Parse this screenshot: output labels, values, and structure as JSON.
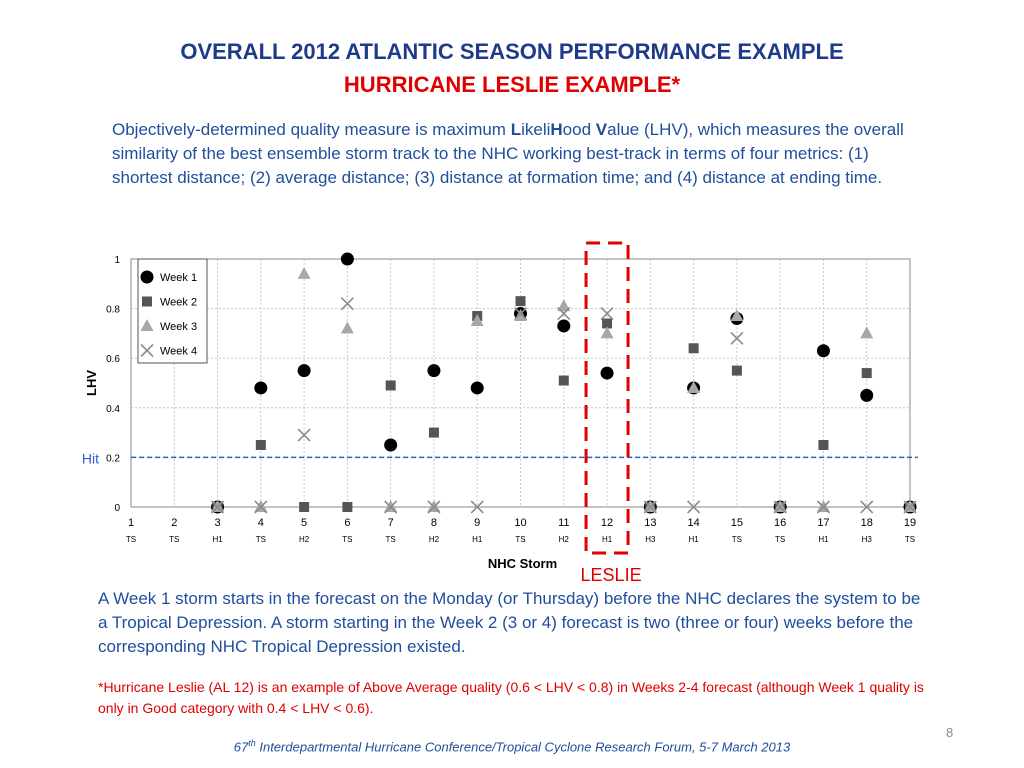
{
  "title": {
    "line1": "OVERALL  2012 ATLANTIC SEASON PERFORMANCE EXAMPLE",
    "line2": "HURRICANE LESLIE EXAMPLE*"
  },
  "intro": {
    "p1": "Objectively-determined quality measure is maximum ",
    "b1": "L",
    "p2": "ikeli",
    "b2": "H",
    "p3": "ood ",
    "b3": "V",
    "p4": "alue (LHV), which measures the overall similarity of the best ensemble storm track to the NHC working best-track in terms of four metrics: (1) shortest distance; (2) average distance; (3) distance at formation time; and (4) distance at ending time."
  },
  "chart_data": {
    "type": "scatter",
    "xlabel": "NHC Storm",
    "ylabel": "LHV",
    "x_ticks": [
      "1",
      "2",
      "3",
      "4",
      "5",
      "6",
      "7",
      "8",
      "9",
      "10",
      "11",
      "12",
      "13",
      "14",
      "15",
      "16",
      "17",
      "18",
      "19"
    ],
    "categories": [
      "TS",
      "TS",
      "H1",
      "TS",
      "H2",
      "TS",
      "TS",
      "H2",
      "H1",
      "TS",
      "H2",
      "H1",
      "H3",
      "H1",
      "TS",
      "TS",
      "H1",
      "H3",
      "TS"
    ],
    "y_ticks": [
      "0",
      "0.2",
      "0.4",
      "0.6",
      "0.8",
      "1"
    ],
    "xlim": [
      1,
      19
    ],
    "ylim": [
      0,
      1
    ],
    "grid": true,
    "legend_position": "top-left",
    "hit_threshold": 0.2,
    "hit_label": "Hit",
    "highlight": {
      "x": 12,
      "label": "LESLIE",
      "color": "#e00000"
    },
    "series": [
      {
        "name": "Week 1",
        "marker": "circle",
        "color": "#000000",
        "points": [
          [
            3,
            0
          ],
          [
            4,
            0.48
          ],
          [
            5,
            0.55
          ],
          [
            6,
            1.0
          ],
          [
            7,
            0.25
          ],
          [
            8,
            0.55
          ],
          [
            9,
            0.48
          ],
          [
            10,
            0.78
          ],
          [
            11,
            0.73
          ],
          [
            12,
            0.54
          ],
          [
            13,
            0
          ],
          [
            14,
            0.48
          ],
          [
            15,
            0.76
          ],
          [
            16,
            0
          ],
          [
            17,
            0.63
          ],
          [
            18,
            0.45
          ],
          [
            19,
            0
          ]
        ]
      },
      {
        "name": "Week 2",
        "marker": "square",
        "color": "#555555",
        "points": [
          [
            3,
            0
          ],
          [
            4,
            0.25
          ],
          [
            5,
            0
          ],
          [
            6,
            0
          ],
          [
            7,
            0.49
          ],
          [
            8,
            0.3
          ],
          [
            9,
            0.77
          ],
          [
            10,
            0.83
          ],
          [
            11,
            0.51
          ],
          [
            12,
            0.74
          ],
          [
            13,
            0
          ],
          [
            14,
            0.64
          ],
          [
            15,
            0.55
          ],
          [
            16,
            0
          ],
          [
            17,
            0.25
          ],
          [
            18,
            0.54
          ],
          [
            19,
            0
          ]
        ]
      },
      {
        "name": "Week 3",
        "marker": "triangle",
        "color": "#a8a8a8",
        "points": [
          [
            3,
            0
          ],
          [
            4,
            0
          ],
          [
            5,
            0.94
          ],
          [
            6,
            0.72
          ],
          [
            7,
            0
          ],
          [
            8,
            0
          ],
          [
            9,
            0.75
          ],
          [
            10,
            0.77
          ],
          [
            11,
            0.81
          ],
          [
            12,
            0.7
          ],
          [
            13,
            0
          ],
          [
            14,
            0.48
          ],
          [
            15,
            0.77
          ],
          [
            16,
            0
          ],
          [
            17,
            0
          ],
          [
            18,
            0.7
          ],
          [
            19,
            0
          ]
        ]
      },
      {
        "name": "Week 4",
        "marker": "x",
        "color": "#8c8c8c",
        "points": [
          [
            3,
            0
          ],
          [
            4,
            0
          ],
          [
            5,
            0.29
          ],
          [
            6,
            0.82
          ],
          [
            7,
            0
          ],
          [
            8,
            0
          ],
          [
            9,
            0
          ],
          [
            10,
            0.78
          ],
          [
            11,
            0.78
          ],
          [
            12,
            0.78
          ],
          [
            13,
            0
          ],
          [
            14,
            0
          ],
          [
            15,
            0.68
          ],
          [
            16,
            0
          ],
          [
            17,
            0
          ],
          [
            18,
            0
          ],
          [
            19,
            0
          ]
        ]
      }
    ]
  },
  "para2": "A Week 1 storm starts in the forecast on the Monday (or Thursday) before the NHC declares the system to be a Tropical Depression.  A storm starting in the Week 2 (3 or 4) forecast is two (three or four) weeks before the corresponding NHC Tropical Depression existed.",
  "para3": "*Hurricane Leslie (AL 12) is an example of Above Average quality (0.6 < LHV < 0.8) in Weeks 2-4 forecast (although Week 1 quality is only in Good category with 0.4 < LHV < 0.6).",
  "page_number": "8",
  "footer": {
    "pre": "67",
    "sup": "th",
    "rest": " Interdepartmental Hurricane Conference/Tropical Cyclone Research Forum, 5-7 March 2013"
  }
}
